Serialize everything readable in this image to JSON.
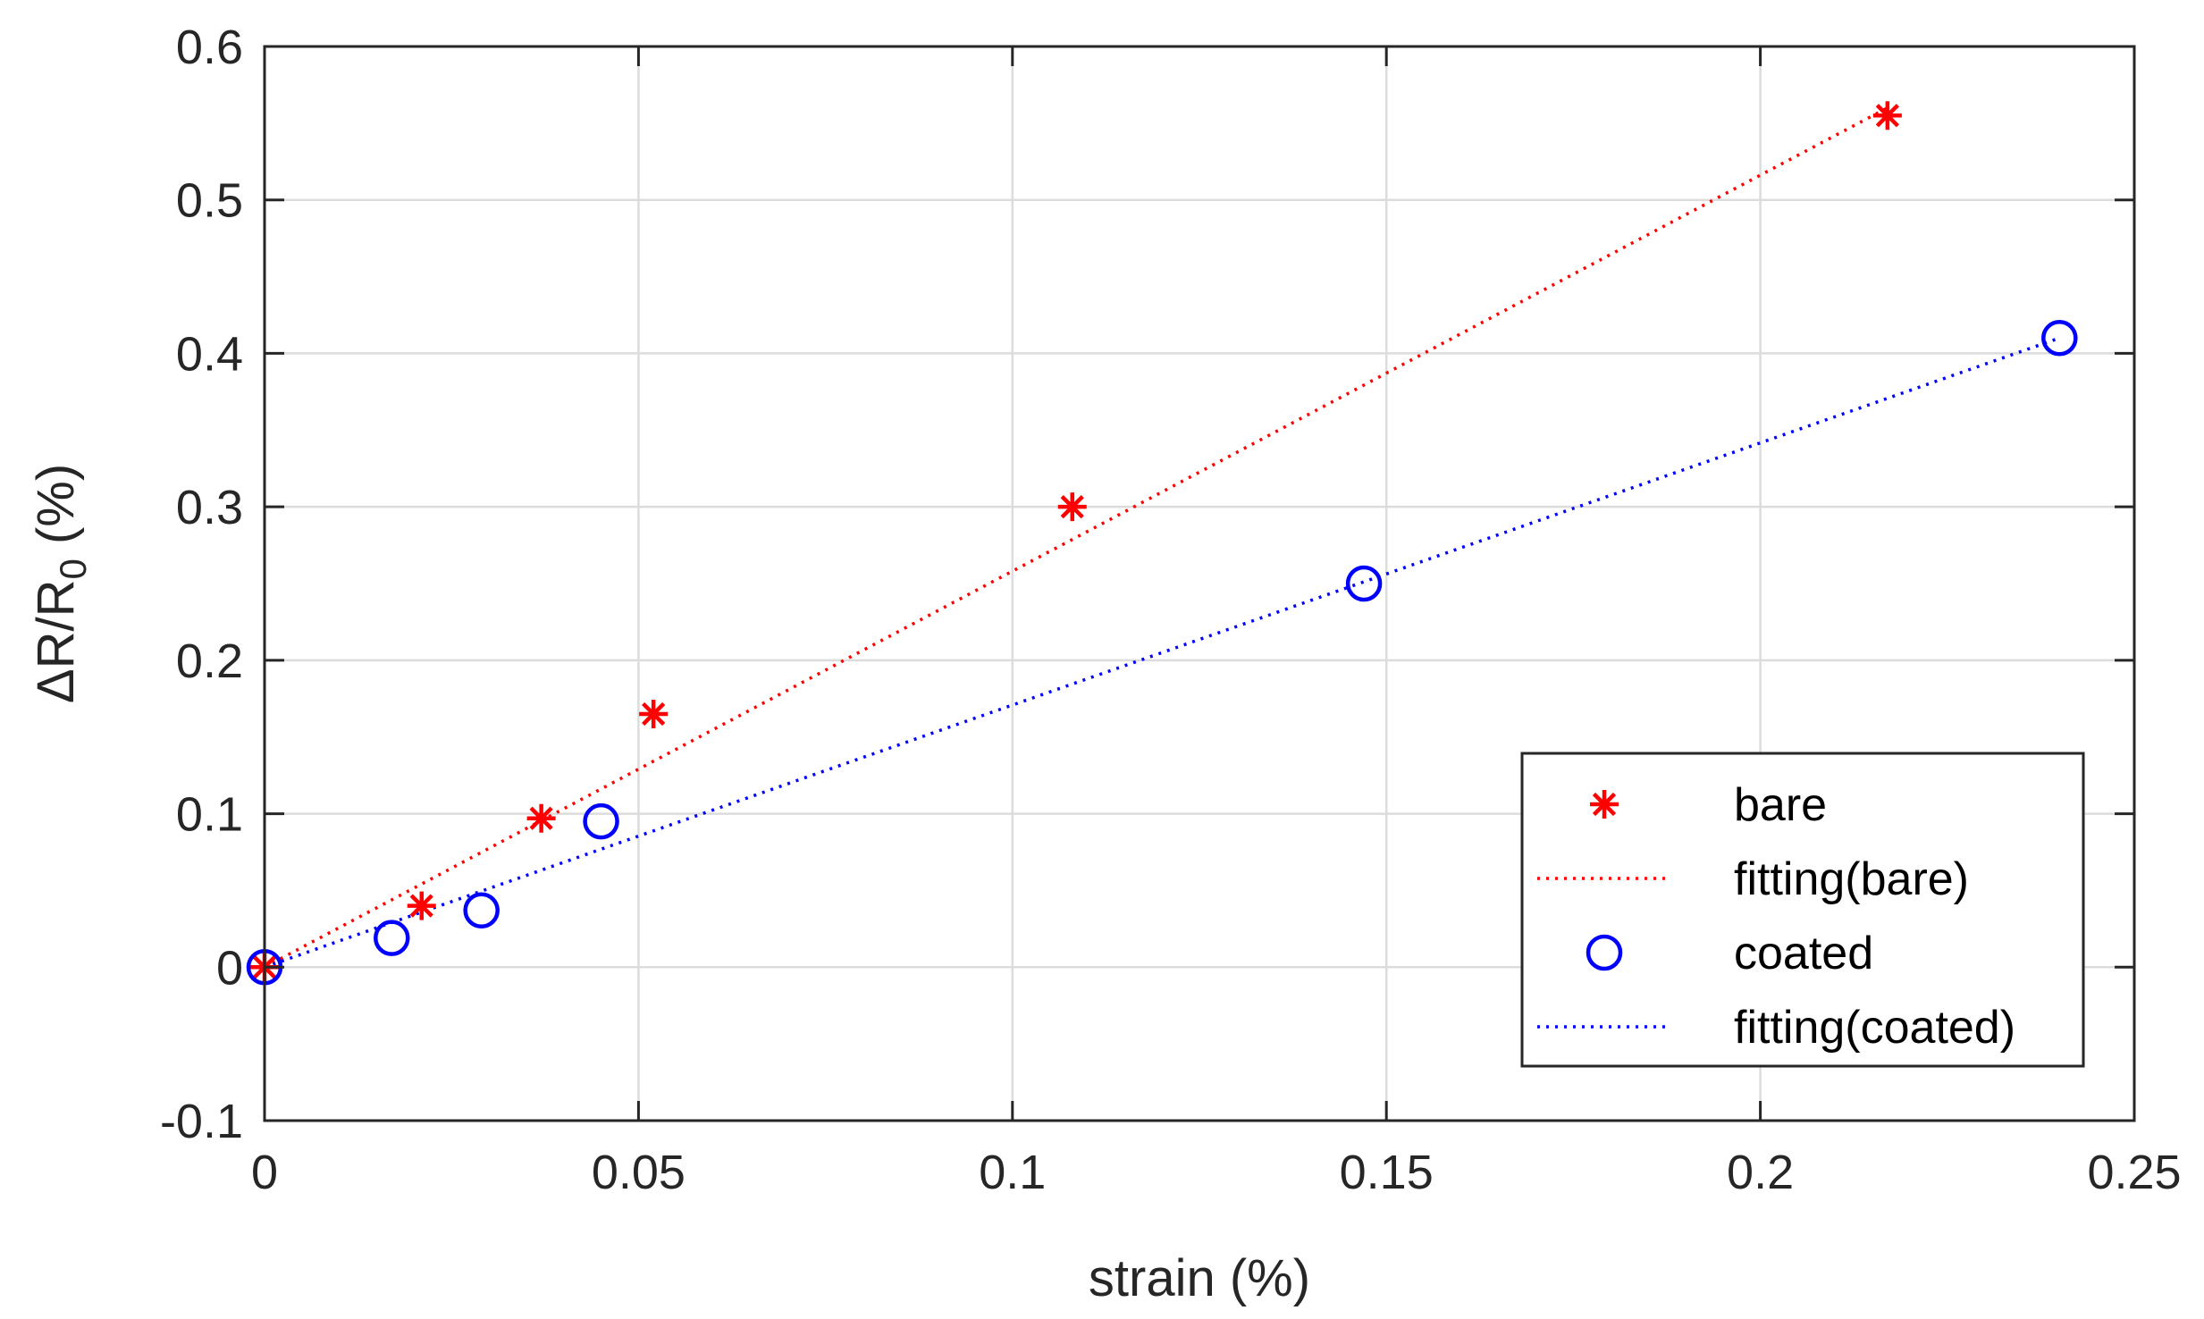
{
  "chart_data": {
    "type": "scatter",
    "title": "",
    "xlabel": "strain (%)",
    "ylabel_main": "ΔR/R",
    "ylabel_sub": "0",
    "ylabel_tail": " (%)",
    "xlim": [
      0,
      0.25
    ],
    "ylim": [
      -0.1,
      0.6
    ],
    "xticks": [
      0,
      0.05,
      0.1,
      0.15,
      0.2,
      0.25
    ],
    "xtick_labels": [
      "0",
      "0.05",
      "0.1",
      "0.15",
      "0.2",
      "0.25"
    ],
    "yticks": [
      -0.1,
      0,
      0.1,
      0.2,
      0.3,
      0.4,
      0.5,
      0.6
    ],
    "ytick_labels": [
      "-0.1",
      "0",
      "0.1",
      "0.2",
      "0.3",
      "0.4",
      "0.5",
      "0.6"
    ],
    "grid": true,
    "legend_position": "bottom-right",
    "series": [
      {
        "name": "bare",
        "kind": "marker",
        "marker": "asterisk",
        "color": "#ff0000",
        "x": [
          0,
          0.021,
          0.037,
          0.052,
          0.108,
          0.217
        ],
        "y": [
          0,
          0.04,
          0.097,
          0.165,
          0.3,
          0.555
        ]
      },
      {
        "name": "fitting(bare)",
        "kind": "line",
        "style": "dotted",
        "color": "#ff0000",
        "x": [
          0,
          0.217
        ],
        "y": [
          0,
          0.56
        ]
      },
      {
        "name": "coated",
        "kind": "marker",
        "marker": "circle",
        "color": "#0000ff",
        "x": [
          0,
          0.017,
          0.029,
          0.045,
          0.147,
          0.24
        ],
        "y": [
          0,
          0.019,
          0.037,
          0.095,
          0.25,
          0.41
        ]
      },
      {
        "name": "fitting(coated)",
        "kind": "line",
        "style": "dotted",
        "color": "#0000ff",
        "x": [
          0,
          0.24
        ],
        "y": [
          0,
          0.41
        ]
      }
    ]
  }
}
